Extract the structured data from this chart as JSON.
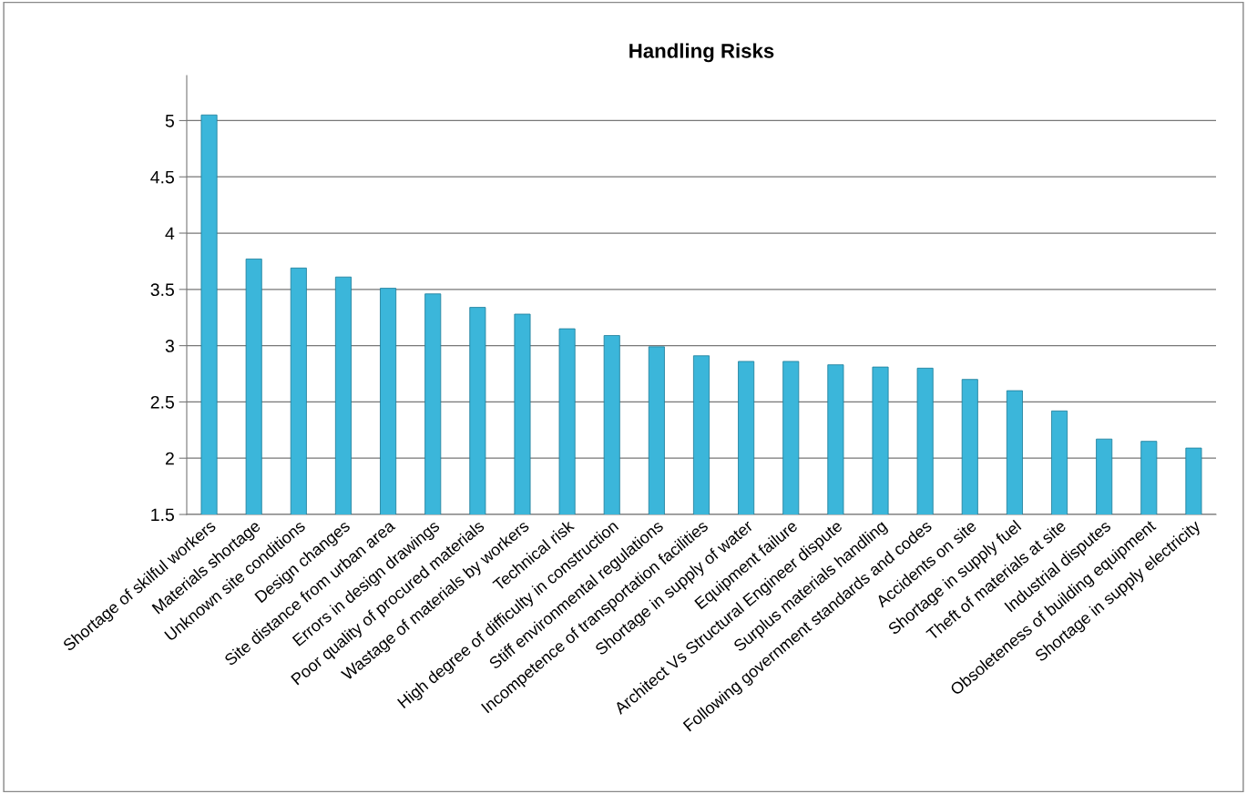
{
  "chart_data": {
    "type": "bar",
    "title": "Handling Risks",
    "categories": [
      "Shortage of skilful workers",
      "Materials shortage",
      "Unknown site conditions",
      "Design changes",
      "Site distance from urban area",
      "Errors in design drawings",
      "Poor quality of procured materials",
      "Wastage of materials by workers",
      "Technical risk",
      "High degree of difficulty in construction",
      "Stiff environmental regulations",
      "Incompetence of transportation facilities",
      "Shortage in supply of water",
      "Equipment failure",
      "Architect Vs Structural Engineer dispute",
      "Surplus materials handling",
      "Following government standards and codes",
      "Accidents on site",
      "Shortage in supply fuel",
      "Theft of materials at site",
      "Industrial disputes",
      "Obsoleteness of building equipment",
      "Shortage in supply electricity"
    ],
    "values": [
      5.05,
      3.77,
      3.69,
      3.61,
      3.51,
      3.46,
      3.34,
      3.28,
      3.15,
      3.09,
      2.99,
      2.91,
      2.86,
      2.86,
      2.83,
      2.81,
      2.8,
      2.7,
      2.6,
      2.42,
      2.17,
      2.15,
      2.09
    ],
    "color": "#3bb6da",
    "ylim": [
      1.5,
      5.4
    ],
    "yticks": [
      1.5,
      2,
      2.5,
      3,
      3.5,
      4,
      4.5,
      5
    ],
    "grid": "y"
  }
}
